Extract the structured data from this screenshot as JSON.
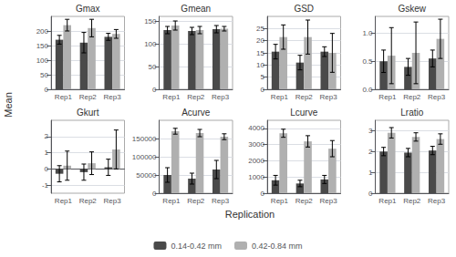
{
  "xlabel": "Replication",
  "ylabel": "Mean",
  "legend": "bottom",
  "chart_data": [
    {
      "type": "bar",
      "title": "Gmax",
      "categories": [
        "Rep1",
        "Rep2",
        "Rep3"
      ],
      "series": [
        {
          "name": "0.14-0.42 mm",
          "color": "#4a4a4a",
          "values": [
            170,
            160,
            180
          ],
          "errors": [
            15,
            35,
            12
          ]
        },
        {
          "name": "0.42-0.84 mm",
          "color": "#b0b0b0",
          "values": [
            220,
            210,
            190
          ],
          "errors": [
            20,
            30,
            15
          ]
        }
      ],
      "ylim": [
        0,
        250
      ],
      "yticks": [
        0,
        50,
        100,
        150,
        200
      ],
      "grid": true
    },
    {
      "type": "bar",
      "title": "Gmean",
      "categories": [
        "Rep1",
        "Rep2",
        "Rep3"
      ],
      "series": [
        {
          "name": "0.14-0.42 mm",
          "color": "#4a4a4a",
          "values": [
            130,
            128,
            132
          ],
          "errors": [
            8,
            8,
            8
          ]
        },
        {
          "name": "0.42-0.84 mm",
          "color": "#b0b0b0",
          "values": [
            140,
            130,
            133
          ],
          "errors": [
            10,
            8,
            5
          ]
        }
      ],
      "ylim": [
        0,
        160
      ],
      "yticks": [
        0,
        50,
        100,
        150
      ],
      "grid": true
    },
    {
      "type": "bar",
      "title": "GSD",
      "categories": [
        "Rep1",
        "Rep2",
        "Rep3"
      ],
      "series": [
        {
          "name": "0.14-0.42 mm",
          "color": "#4a4a4a",
          "values": [
            15.5,
            11,
            15.5
          ],
          "errors": [
            3,
            3,
            2
          ]
        },
        {
          "name": "0.42-0.84 mm",
          "color": "#b0b0b0",
          "values": [
            21.5,
            21.5,
            15
          ],
          "errors": [
            5,
            7,
            8
          ]
        }
      ],
      "ylim": [
        0,
        30
      ],
      "yticks": [
        0,
        5,
        10,
        15,
        20,
        25
      ],
      "grid": true
    },
    {
      "type": "bar",
      "title": "Gskew",
      "categories": [
        "Rep1",
        "Rep2",
        "Rep3"
      ],
      "series": [
        {
          "name": "0.14-0.42 mm",
          "color": "#4a4a4a",
          "values": [
            0.5,
            0.4,
            0.55
          ],
          "errors": [
            0.2,
            0.15,
            0.15
          ]
        },
        {
          "name": "0.42-0.84 mm",
          "color": "#b0b0b0",
          "values": [
            0.6,
            0.65,
            0.9
          ],
          "errors": [
            0.5,
            0.55,
            0.35
          ]
        }
      ],
      "ylim": [
        0.0,
        1.3
      ],
      "yticks": [
        {
          "value": 0,
          "label": "0.0"
        },
        0.5,
        {
          "value": 1,
          "label": "1.0"
        }
      ],
      "grid": true
    },
    {
      "type": "bar",
      "title": "Gkurt",
      "categories": [
        "Rep1",
        "Rep2",
        "Rep3"
      ],
      "series": [
        {
          "name": "0.14-0.42 mm",
          "color": "#4a4a4a",
          "values": [
            -0.3,
            -0.2,
            0.1
          ],
          "errors": [
            0.5,
            0.5,
            0.5
          ]
        },
        {
          "name": "0.42-0.84 mm",
          "color": "#b0b0b0",
          "values": [
            0.2,
            0.35,
            1.2
          ],
          "errors": [
            0.9,
            0.7,
            1.2
          ]
        }
      ],
      "ylim": [
        -1.5,
        3.0
      ],
      "yticks": [
        -1,
        0,
        1,
        2
      ],
      "grid": true
    },
    {
      "type": "bar",
      "title": "Acurve",
      "categories": [
        "Rep1",
        "Rep2",
        "Rep3"
      ],
      "series": [
        {
          "name": "0.14-0.42 mm",
          "color": "#4a4a4a",
          "values": [
            50000,
            40000,
            65000
          ],
          "errors": [
            20000,
            15000,
            25000
          ]
        },
        {
          "name": "0.42-0.84 mm",
          "color": "#b0b0b0",
          "values": [
            170000,
            165000,
            155000
          ],
          "errors": [
            8000,
            10000,
            8000
          ]
        }
      ],
      "ylim": [
        0,
        200000
      ],
      "yticks": [
        0,
        50000,
        100000,
        150000
      ],
      "grid": true
    },
    {
      "type": "bar",
      "title": "Lcurve",
      "categories": [
        "Rep1",
        "Rep2",
        "Rep3"
      ],
      "series": [
        {
          "name": "0.14-0.42 mm",
          "color": "#4a4a4a",
          "values": [
            800,
            600,
            850
          ],
          "errors": [
            300,
            200,
            250
          ]
        },
        {
          "name": "0.42-0.84 mm",
          "color": "#b0b0b0",
          "values": [
            3700,
            3200,
            2750
          ],
          "errors": [
            250,
            350,
            500
          ]
        }
      ],
      "ylim": [
        0,
        4500
      ],
      "yticks": [
        0,
        1000,
        2000,
        3000,
        4000
      ],
      "grid": true
    },
    {
      "type": "bar",
      "title": "Lratio",
      "categories": [
        "Rep1",
        "Rep2",
        "Rep3"
      ],
      "series": [
        {
          "name": "0.14-0.42 mm",
          "color": "#4a4a4a",
          "values": [
            2.0,
            1.95,
            2.05
          ],
          "errors": [
            0.2,
            0.2,
            0.2
          ]
        },
        {
          "name": "0.42-0.84 mm",
          "color": "#b0b0b0",
          "values": [
            2.9,
            2.7,
            2.6
          ],
          "errors": [
            0.25,
            0.2,
            0.25
          ]
        }
      ],
      "ylim": [
        0,
        3.5
      ],
      "yticks": [
        0,
        1,
        2,
        3
      ],
      "grid": true
    }
  ]
}
